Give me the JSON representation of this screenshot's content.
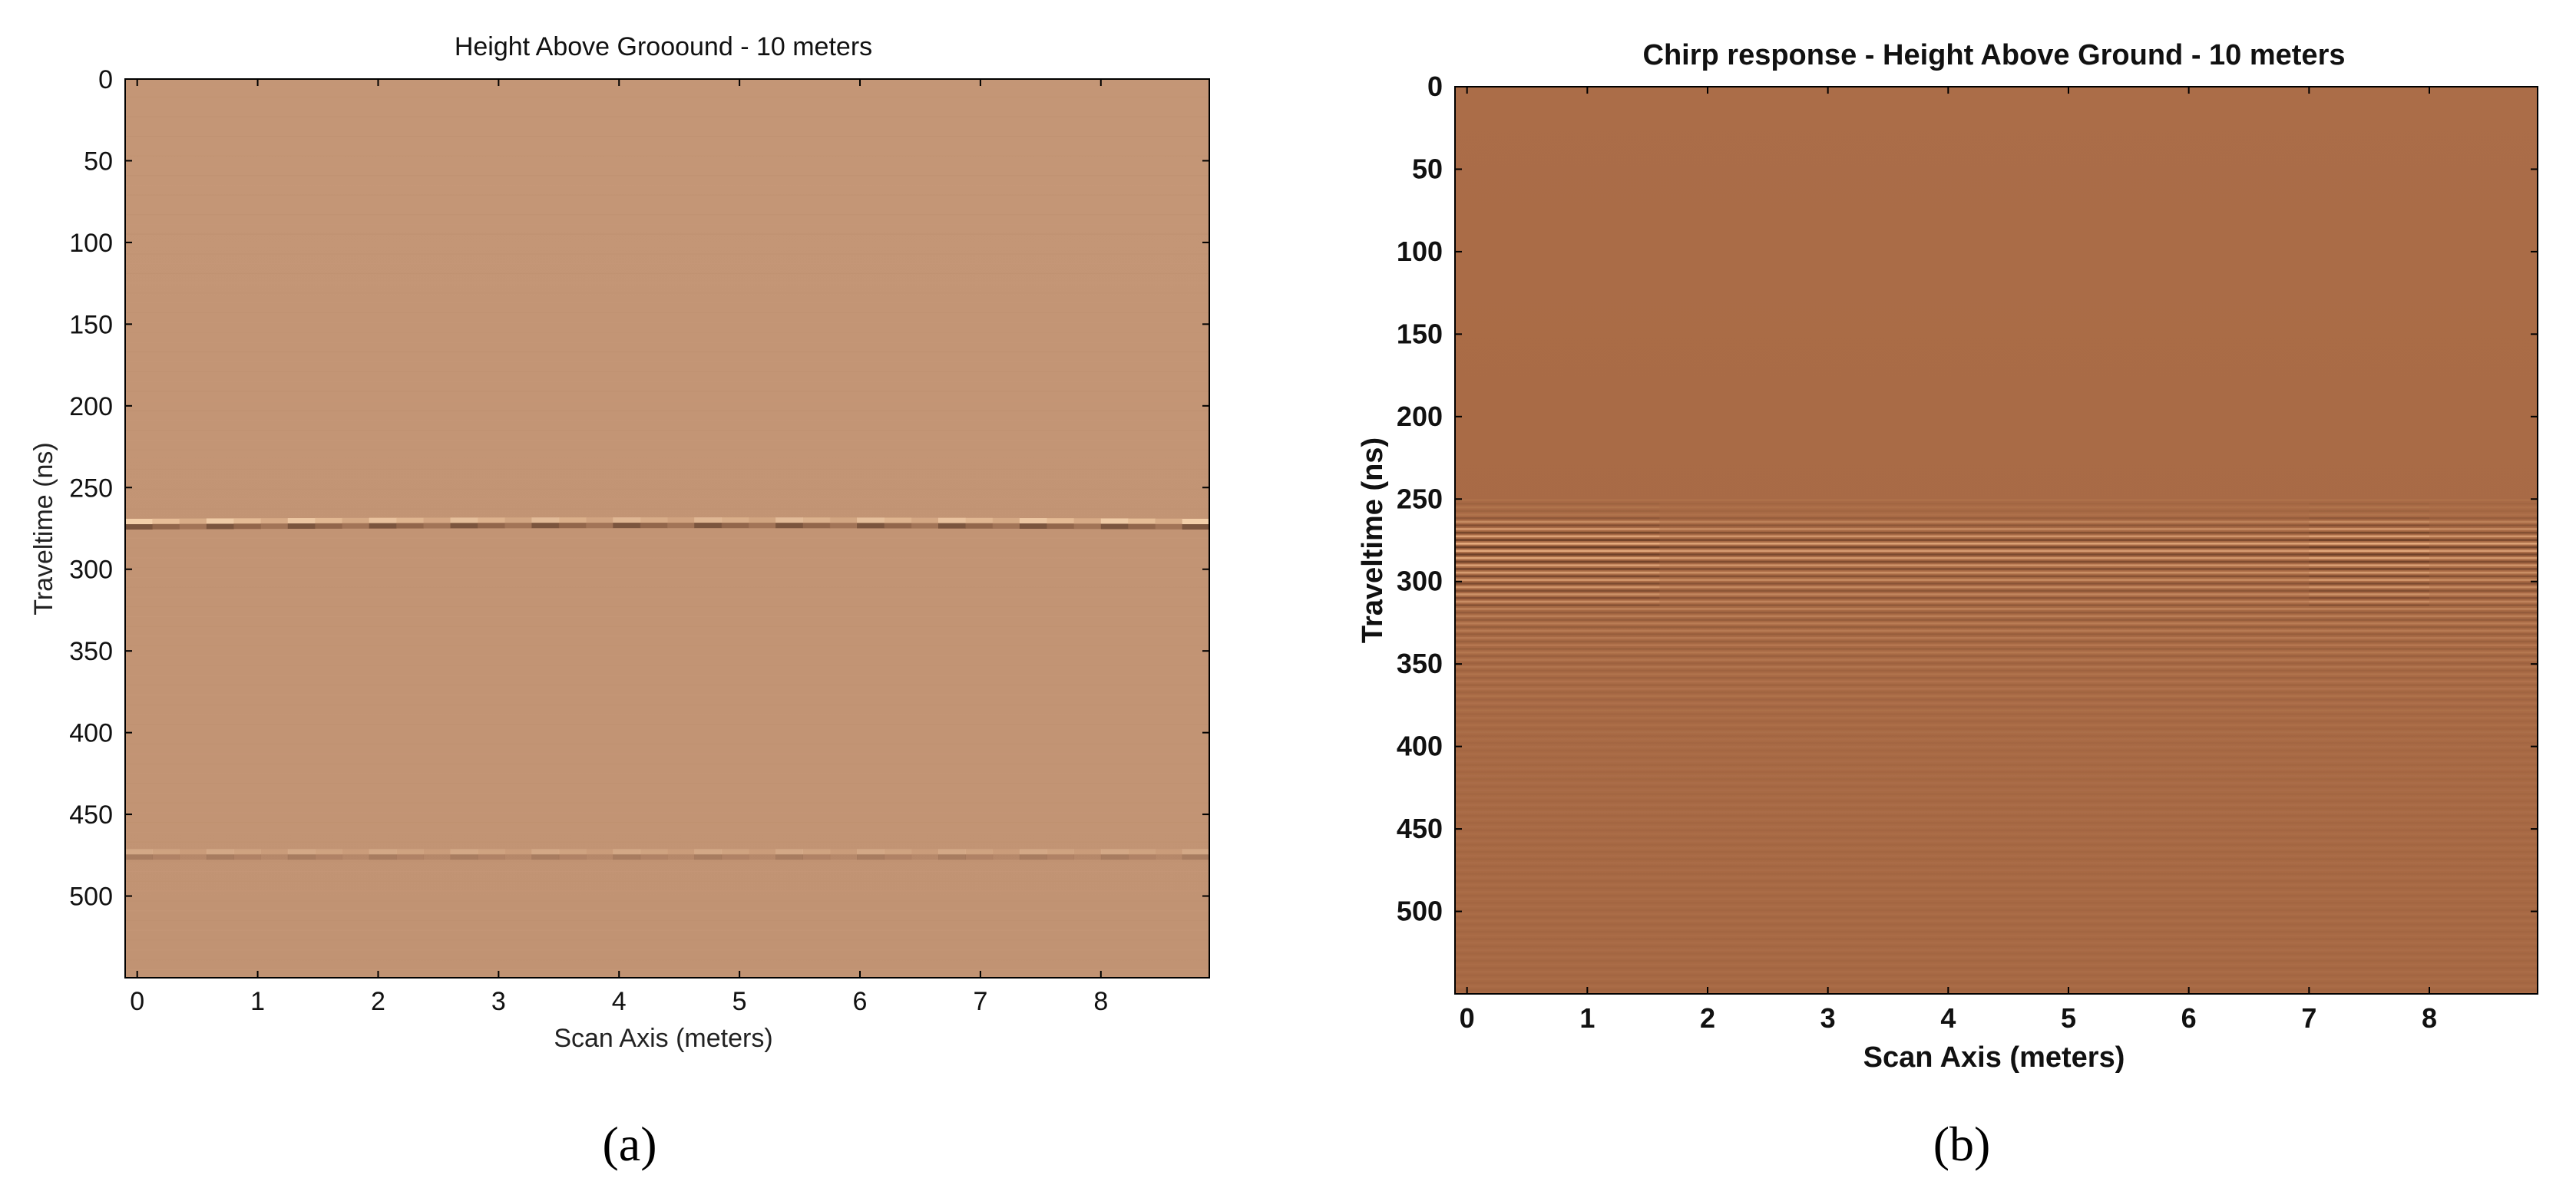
{
  "chart_data": [
    {
      "type": "heatmap",
      "panel_label": "(a)",
      "title": "Height Above Grooound - 10 meters",
      "xlabel": "Scan Axis (meters)",
      "ylabel": "Traveltime (ns)",
      "xlim": [
        -0.1,
        8.9
      ],
      "ylim": [
        550,
        0
      ],
      "xticks": [
        0,
        1,
        2,
        3,
        4,
        5,
        6,
        7,
        8
      ],
      "yticks": [
        0,
        50,
        100,
        150,
        200,
        250,
        300,
        350,
        400,
        450,
        500
      ],
      "x_tick_labels": [
        "0",
        "1",
        "2",
        "3",
        "4",
        "5",
        "6",
        "7",
        "8"
      ],
      "y_tick_labels": [
        "0",
        "50",
        "100",
        "150",
        "200",
        "250",
        "300",
        "350",
        "400",
        "450",
        "500"
      ],
      "background_color": "#c29474",
      "reflectors": [
        {
          "traveltime_ns": 272,
          "strength": "strong"
        },
        {
          "traveltime_ns": 475,
          "strength": "weak"
        }
      ],
      "grid": false
    },
    {
      "type": "heatmap",
      "panel_label": "(b)",
      "title": "Chirp response - Height Above Ground - 10 meters",
      "xlabel": "Scan Axis (meters)",
      "ylabel": "Traveltime (ns)",
      "xlim": [
        -0.1,
        8.9
      ],
      "ylim": [
        550,
        0
      ],
      "xticks": [
        0,
        1,
        2,
        3,
        4,
        5,
        6,
        7,
        8
      ],
      "yticks": [
        0,
        50,
        100,
        150,
        200,
        250,
        300,
        350,
        400,
        450,
        500
      ],
      "x_tick_labels": [
        "0",
        "1",
        "2",
        "3",
        "4",
        "5",
        "6",
        "7",
        "8"
      ],
      "y_tick_labels": [
        "0",
        "50",
        "100",
        "150",
        "200",
        "250",
        "300",
        "350",
        "400",
        "450",
        "500"
      ],
      "background_color": "#a86a45",
      "reflectors": [
        {
          "traveltime_ns": 275,
          "strength": "strong",
          "ringing_to_ns": 550
        }
      ],
      "grid": false
    }
  ]
}
